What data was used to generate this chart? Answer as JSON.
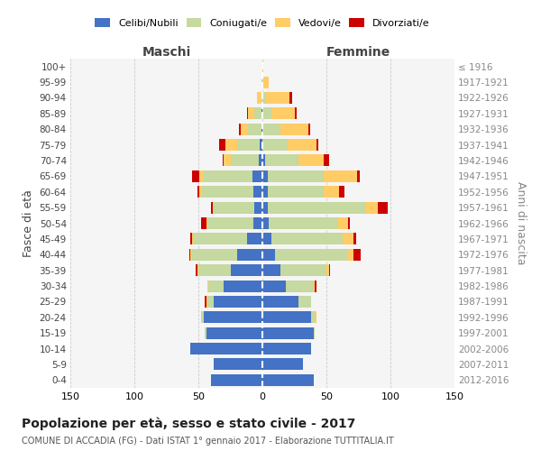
{
  "age_groups": [
    "100+",
    "95-99",
    "90-94",
    "85-89",
    "80-84",
    "75-79",
    "70-74",
    "65-69",
    "60-64",
    "55-59",
    "50-54",
    "45-49",
    "40-44",
    "35-39",
    "30-34",
    "25-29",
    "20-24",
    "15-19",
    "10-14",
    "5-9",
    "0-4"
  ],
  "birth_years": [
    "≤ 1916",
    "1917-1921",
    "1922-1926",
    "1927-1931",
    "1932-1936",
    "1937-1941",
    "1942-1946",
    "1947-1951",
    "1952-1956",
    "1957-1961",
    "1962-1966",
    "1967-1971",
    "1972-1976",
    "1977-1981",
    "1982-1986",
    "1987-1991",
    "1992-1996",
    "1997-2001",
    "2002-2006",
    "2007-2011",
    "2012-2016"
  ],
  "maschi": {
    "celibi": [
      0,
      0,
      0,
      1,
      1,
      2,
      3,
      8,
      7,
      6,
      7,
      12,
      20,
      25,
      30,
      38,
      46,
      44,
      56,
      38,
      40
    ],
    "coniugati": [
      0,
      0,
      1,
      5,
      10,
      18,
      22,
      38,
      40,
      32,
      36,
      42,
      35,
      25,
      12,
      5,
      2,
      1,
      0,
      0,
      0
    ],
    "vedovi": [
      0,
      1,
      3,
      5,
      6,
      9,
      5,
      3,
      2,
      1,
      1,
      1,
      1,
      1,
      1,
      1,
      0,
      0,
      0,
      0,
      0
    ],
    "divorziati": [
      0,
      0,
      0,
      1,
      1,
      5,
      1,
      6,
      2,
      1,
      4,
      1,
      1,
      1,
      0,
      1,
      0,
      0,
      0,
      0,
      0
    ]
  },
  "femmine": {
    "nubili": [
      0,
      0,
      0,
      0,
      0,
      0,
      2,
      4,
      4,
      4,
      5,
      7,
      10,
      14,
      18,
      28,
      38,
      40,
      38,
      32,
      40
    ],
    "coniugate": [
      0,
      1,
      3,
      7,
      14,
      20,
      26,
      44,
      44,
      76,
      54,
      56,
      56,
      36,
      22,
      10,
      3,
      1,
      0,
      0,
      0
    ],
    "vedove": [
      1,
      4,
      18,
      18,
      22,
      22,
      20,
      26,
      12,
      10,
      8,
      8,
      5,
      2,
      1,
      0,
      1,
      0,
      0,
      0,
      0
    ],
    "divorziate": [
      0,
      0,
      2,
      2,
      1,
      2,
      4,
      2,
      4,
      8,
      1,
      2,
      6,
      1,
      1,
      0,
      0,
      0,
      0,
      0,
      0
    ]
  },
  "colors": {
    "celibi": "#4472C4",
    "coniugati": "#C5D9A0",
    "vedovi": "#FFCC66",
    "divorziati": "#CC0000"
  },
  "xlim": 150,
  "title": "Popolazione per età, sesso e stato civile - 2017",
  "subtitle": "COMUNE DI ACCADIA (FG) - Dati ISTAT 1° gennaio 2017 - Elaborazione TUTTITALIA.IT",
  "ylabel_left": "Fasce di età",
  "ylabel_right": "Anni di nascita",
  "xlabel_left": "Maschi",
  "xlabel_right": "Femmine"
}
